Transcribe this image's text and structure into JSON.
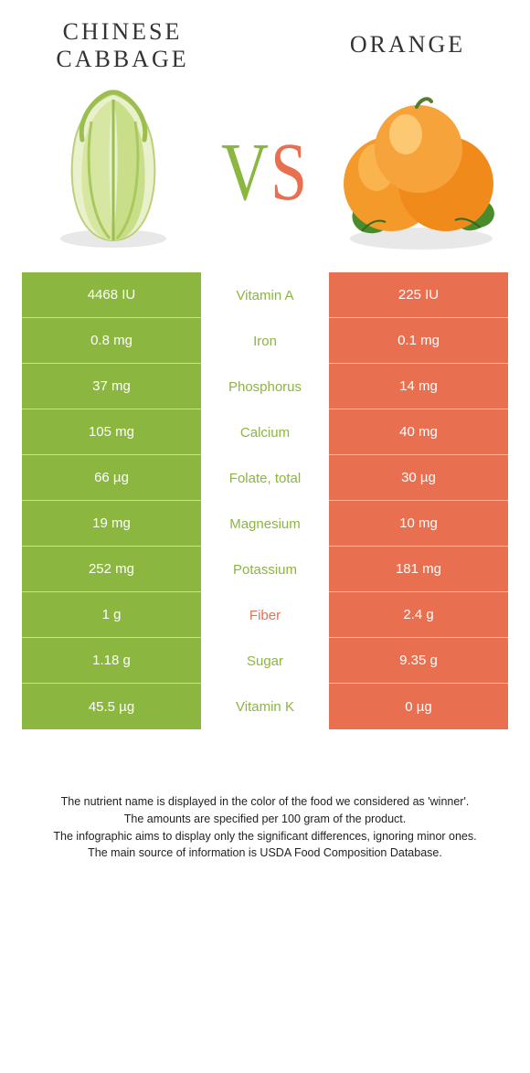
{
  "colors": {
    "left": "#8bb63f",
    "right": "#e96f51",
    "text": "#333333"
  },
  "titles": {
    "left": "CHINESE CABBAGE",
    "right": "ORANGE",
    "vs_v": "V",
    "vs_s": "S"
  },
  "rows": [
    {
      "label": "Vitamin A",
      "left": "4468 IU",
      "right": "225 IU",
      "winner": "left"
    },
    {
      "label": "Iron",
      "left": "0.8 mg",
      "right": "0.1 mg",
      "winner": "left"
    },
    {
      "label": "Phosphorus",
      "left": "37 mg",
      "right": "14 mg",
      "winner": "left"
    },
    {
      "label": "Calcium",
      "left": "105 mg",
      "right": "40 mg",
      "winner": "left"
    },
    {
      "label": "Folate, total",
      "left": "66 µg",
      "right": "30 µg",
      "winner": "left"
    },
    {
      "label": "Magnesium",
      "left": "19 mg",
      "right": "10 mg",
      "winner": "left"
    },
    {
      "label": "Potassium",
      "left": "252 mg",
      "right": "181 mg",
      "winner": "left"
    },
    {
      "label": "Fiber",
      "left": "1 g",
      "right": "2.4 g",
      "winner": "right"
    },
    {
      "label": "Sugar",
      "left": "1.18 g",
      "right": "9.35 g",
      "winner": "left"
    },
    {
      "label": "Vitamin K",
      "left": "45.5 µg",
      "right": "0 µg",
      "winner": "left"
    }
  ],
  "footnotes": [
    "The nutrient name is displayed in the color of the food we considered as 'winner'.",
    "The amounts are specified per 100 gram of the product.",
    "The infographic aims to display only the significant differences, ignoring minor ones.",
    "The main source of information is USDA Food Composition Database."
  ]
}
